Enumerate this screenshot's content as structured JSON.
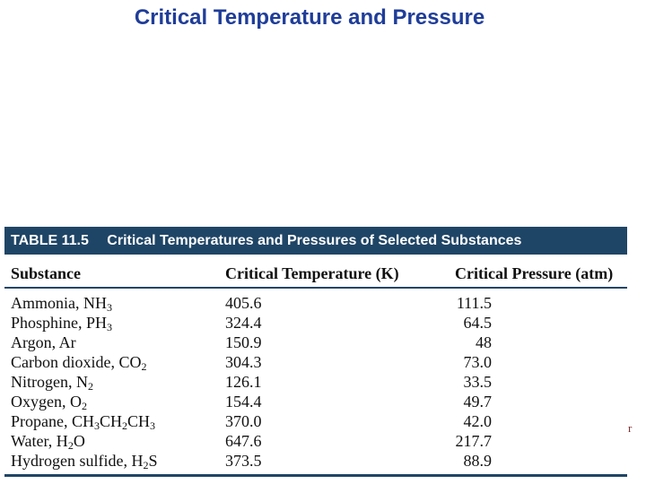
{
  "slide": {
    "title": "Critical Temperature and Pressure",
    "stray_text": "r"
  },
  "table": {
    "number": "TABLE 11.5",
    "caption": "Critical Temperatures and Pressures of Selected Substances",
    "header_color": "#1f4566",
    "columns": [
      "Substance",
      "Critical Temperature (K)",
      "Critical Pressure (atm)"
    ],
    "rows": [
      {
        "name": [
          {
            "t": "Ammonia, NH"
          },
          {
            "s": "3"
          }
        ],
        "temp": "405.6",
        "pressure": "111.5"
      },
      {
        "name": [
          {
            "t": "Phosphine, PH"
          },
          {
            "s": "3"
          }
        ],
        "temp": "324.4",
        "pressure": "64.5"
      },
      {
        "name": [
          {
            "t": "Argon, Ar"
          }
        ],
        "temp": "150.9",
        "pressure": "48"
      },
      {
        "name": [
          {
            "t": "Carbon dioxide, CO"
          },
          {
            "s": "2"
          }
        ],
        "temp": "304.3",
        "pressure": "73.0"
      },
      {
        "name": [
          {
            "t": "Nitrogen, N"
          },
          {
            "s": "2"
          }
        ],
        "temp": "126.1",
        "pressure": "33.5"
      },
      {
        "name": [
          {
            "t": "Oxygen, O"
          },
          {
            "s": "2"
          }
        ],
        "temp": "154.4",
        "pressure": "49.7"
      },
      {
        "name": [
          {
            "t": "Propane, CH"
          },
          {
            "s": "3"
          },
          {
            "t": "CH"
          },
          {
            "s": "2"
          },
          {
            "t": "CH"
          },
          {
            "s": "3"
          }
        ],
        "temp": "370.0",
        "pressure": "42.0"
      },
      {
        "name": [
          {
            "t": "Water, H"
          },
          {
            "s": "2"
          },
          {
            "t": "O"
          }
        ],
        "temp": "647.6",
        "pressure": "217.7"
      },
      {
        "name": [
          {
            "t": "Hydrogen sulfide, H"
          },
          {
            "s": "2"
          },
          {
            "t": "S"
          }
        ],
        "temp": "373.5",
        "pressure": "88.9"
      }
    ]
  }
}
